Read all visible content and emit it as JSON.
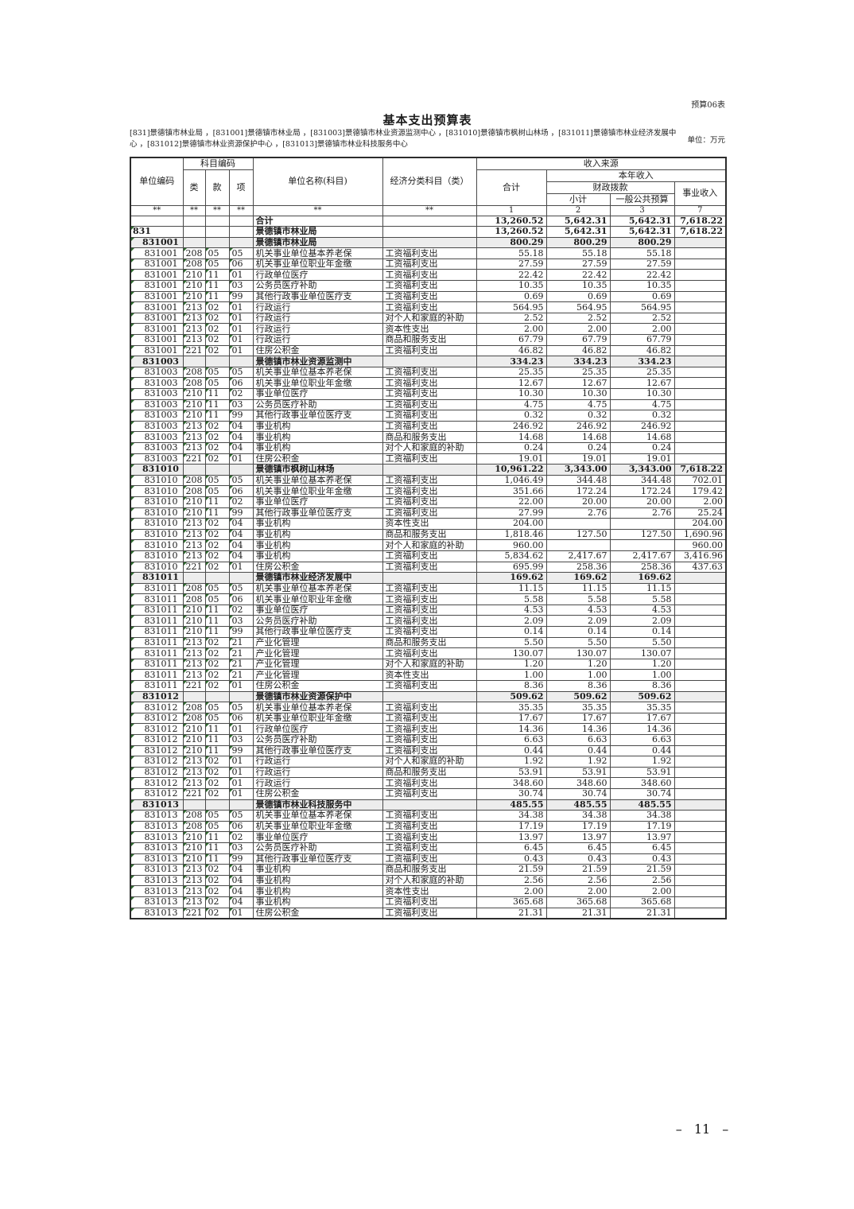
{
  "page": {
    "form_label": "预算06表",
    "unit_label": "单位：万元",
    "page_number": "– 11 –"
  },
  "header": {
    "title": "基本支出预算表",
    "org_list": "[831]景德镇市林业局 ，[831001]景德镇市林业局 ，[831003]景德镇市林业资源监测中心 ，[831010]景德镇市枫树山林场 ，[831011]景德镇市林业经济发展中心 ，[831012]景德镇市林业资源保护中心 ，[831013]景德镇市林业科技服务中心"
  },
  "table": {
    "header": {
      "unit_code": "单位编码",
      "subject_code": "科目编码",
      "cls": "类",
      "sec": "款",
      "item": "项",
      "unit_name": "单位名称(科目)",
      "econ_class": "经济分类科目（类）",
      "income_source": "收入来源",
      "total": "合计",
      "year_income": "本年收入",
      "fiscal": "财政拨款",
      "subtotal": "小计",
      "public_budget": "一般公共预算",
      "business_income": "事业收入"
    },
    "code_row": [
      "**",
      "**",
      "**",
      "**",
      "**",
      "**",
      "1",
      "2",
      "3",
      "7"
    ],
    "rows": [
      [
        "g",
        "",
        "",
        "",
        "",
        "合计",
        "",
        "13,260.52",
        "5,642.31",
        "5,642.31",
        "7,618.22"
      ],
      [
        "d",
        "831",
        "",
        "",
        "",
        "景德镇市林业局",
        "",
        "13,260.52",
        "5,642.31",
        "5,642.31",
        "7,618.22"
      ],
      [
        "s",
        "831001",
        "",
        "",
        "",
        "景德镇市林业局",
        "",
        "800.29",
        "800.29",
        "800.29",
        ""
      ],
      [
        "r",
        "831001",
        "208",
        "05",
        "05",
        "机关事业单位基本养老保",
        "工资福利支出",
        "55.18",
        "55.18",
        "55.18",
        ""
      ],
      [
        "r",
        "831001",
        "208",
        "05",
        "06",
        "机关事业单位职业年金缴",
        "工资福利支出",
        "27.59",
        "27.59",
        "27.59",
        ""
      ],
      [
        "r",
        "831001",
        "210",
        "11",
        "01",
        "行政单位医疗",
        "工资福利支出",
        "22.42",
        "22.42",
        "22.42",
        ""
      ],
      [
        "r",
        "831001",
        "210",
        "11",
        "03",
        "公务员医疗补助",
        "工资福利支出",
        "10.35",
        "10.35",
        "10.35",
        ""
      ],
      [
        "r",
        "831001",
        "210",
        "11",
        "99",
        "其他行政事业单位医疗支",
        "工资福利支出",
        "0.69",
        "0.69",
        "0.69",
        ""
      ],
      [
        "r",
        "831001",
        "213",
        "02",
        "01",
        "行政运行",
        "工资福利支出",
        "564.95",
        "564.95",
        "564.95",
        ""
      ],
      [
        "r",
        "831001",
        "213",
        "02",
        "01",
        "行政运行",
        "对个人和家庭的补助",
        "2.52",
        "2.52",
        "2.52",
        ""
      ],
      [
        "r",
        "831001",
        "213",
        "02",
        "01",
        "行政运行",
        "资本性支出",
        "2.00",
        "2.00",
        "2.00",
        ""
      ],
      [
        "r",
        "831001",
        "213",
        "02",
        "01",
        "行政运行",
        "商品和服务支出",
        "67.79",
        "67.79",
        "67.79",
        ""
      ],
      [
        "r",
        "831001",
        "221",
        "02",
        "01",
        "住房公积金",
        "工资福利支出",
        "46.82",
        "46.82",
        "46.82",
        ""
      ],
      [
        "s",
        "831003",
        "",
        "",
        "",
        "景德镇市林业资源监测中",
        "",
        "334.23",
        "334.23",
        "334.23",
        ""
      ],
      [
        "r",
        "831003",
        "208",
        "05",
        "05",
        "机关事业单位基本养老保",
        "工资福利支出",
        "25.35",
        "25.35",
        "25.35",
        ""
      ],
      [
        "r",
        "831003",
        "208",
        "05",
        "06",
        "机关事业单位职业年金缴",
        "工资福利支出",
        "12.67",
        "12.67",
        "12.67",
        ""
      ],
      [
        "r",
        "831003",
        "210",
        "11",
        "02",
        "事业单位医疗",
        "工资福利支出",
        "10.30",
        "10.30",
        "10.30",
        ""
      ],
      [
        "r",
        "831003",
        "210",
        "11",
        "03",
        "公务员医疗补助",
        "工资福利支出",
        "4.75",
        "4.75",
        "4.75",
        ""
      ],
      [
        "r",
        "831003",
        "210",
        "11",
        "99",
        "其他行政事业单位医疗支",
        "工资福利支出",
        "0.32",
        "0.32",
        "0.32",
        ""
      ],
      [
        "r",
        "831003",
        "213",
        "02",
        "04",
        "事业机构",
        "工资福利支出",
        "246.92",
        "246.92",
        "246.92",
        ""
      ],
      [
        "r",
        "831003",
        "213",
        "02",
        "04",
        "事业机构",
        "商品和服务支出",
        "14.68",
        "14.68",
        "14.68",
        ""
      ],
      [
        "r",
        "831003",
        "213",
        "02",
        "04",
        "事业机构",
        "对个人和家庭的补助",
        "0.24",
        "0.24",
        "0.24",
        ""
      ],
      [
        "r",
        "831003",
        "221",
        "02",
        "01",
        "住房公积金",
        "工资福利支出",
        "19.01",
        "19.01",
        "19.01",
        ""
      ],
      [
        "s",
        "831010",
        "",
        "",
        "",
        "景德镇市枫树山林场",
        "",
        "10,961.22",
        "3,343.00",
        "3,343.00",
        "7,618.22"
      ],
      [
        "r",
        "831010",
        "208",
        "05",
        "05",
        "机关事业单位基本养老保",
        "工资福利支出",
        "1,046.49",
        "344.48",
        "344.48",
        "702.01"
      ],
      [
        "r",
        "831010",
        "208",
        "05",
        "06",
        "机关事业单位职业年金缴",
        "工资福利支出",
        "351.66",
        "172.24",
        "172.24",
        "179.42"
      ],
      [
        "r",
        "831010",
        "210",
        "11",
        "02",
        "事业单位医疗",
        "工资福利支出",
        "22.00",
        "20.00",
        "20.00",
        "2.00"
      ],
      [
        "r",
        "831010",
        "210",
        "11",
        "99",
        "其他行政事业单位医疗支",
        "工资福利支出",
        "27.99",
        "2.76",
        "2.76",
        "25.24"
      ],
      [
        "r",
        "831010",
        "213",
        "02",
        "04",
        "事业机构",
        "资本性支出",
        "204.00",
        "",
        "",
        "204.00"
      ],
      [
        "r",
        "831010",
        "213",
        "02",
        "04",
        "事业机构",
        "商品和服务支出",
        "1,818.46",
        "127.50",
        "127.50",
        "1,690.96"
      ],
      [
        "r",
        "831010",
        "213",
        "02",
        "04",
        "事业机构",
        "对个人和家庭的补助",
        "960.00",
        "",
        "",
        "960.00"
      ],
      [
        "r",
        "831010",
        "213",
        "02",
        "04",
        "事业机构",
        "工资福利支出",
        "5,834.62",
        "2,417.67",
        "2,417.67",
        "3,416.96"
      ],
      [
        "r",
        "831010",
        "221",
        "02",
        "01",
        "住房公积金",
        "工资福利支出",
        "695.99",
        "258.36",
        "258.36",
        "437.63"
      ],
      [
        "s",
        "831011",
        "",
        "",
        "",
        "景德镇市林业经济发展中",
        "",
        "169.62",
        "169.62",
        "169.62",
        ""
      ],
      [
        "r",
        "831011",
        "208",
        "05",
        "05",
        "机关事业单位基本养老保",
        "工资福利支出",
        "11.15",
        "11.15",
        "11.15",
        ""
      ],
      [
        "r",
        "831011",
        "208",
        "05",
        "06",
        "机关事业单位职业年金缴",
        "工资福利支出",
        "5.58",
        "5.58",
        "5.58",
        ""
      ],
      [
        "r",
        "831011",
        "210",
        "11",
        "02",
        "事业单位医疗",
        "工资福利支出",
        "4.53",
        "4.53",
        "4.53",
        ""
      ],
      [
        "r",
        "831011",
        "210",
        "11",
        "03",
        "公务员医疗补助",
        "工资福利支出",
        "2.09",
        "2.09",
        "2.09",
        ""
      ],
      [
        "r",
        "831011",
        "210",
        "11",
        "99",
        "其他行政事业单位医疗支",
        "工资福利支出",
        "0.14",
        "0.14",
        "0.14",
        ""
      ],
      [
        "r",
        "831011",
        "213",
        "02",
        "21",
        "产业化管理",
        "商品和服务支出",
        "5.50",
        "5.50",
        "5.50",
        ""
      ],
      [
        "r",
        "831011",
        "213",
        "02",
        "21",
        "产业化管理",
        "工资福利支出",
        "130.07",
        "130.07",
        "130.07",
        ""
      ],
      [
        "r",
        "831011",
        "213",
        "02",
        "21",
        "产业化管理",
        "对个人和家庭的补助",
        "1.20",
        "1.20",
        "1.20",
        ""
      ],
      [
        "r",
        "831011",
        "213",
        "02",
        "21",
        "产业化管理",
        "资本性支出",
        "1.00",
        "1.00",
        "1.00",
        ""
      ],
      [
        "r",
        "831011",
        "221",
        "02",
        "01",
        "住房公积金",
        "工资福利支出",
        "8.36",
        "8.36",
        "8.36",
        ""
      ],
      [
        "s",
        "831012",
        "",
        "",
        "",
        "景德镇市林业资源保护中",
        "",
        "509.62",
        "509.62",
        "509.62",
        ""
      ],
      [
        "r",
        "831012",
        "208",
        "05",
        "05",
        "机关事业单位基本养老保",
        "工资福利支出",
        "35.35",
        "35.35",
        "35.35",
        ""
      ],
      [
        "r",
        "831012",
        "208",
        "05",
        "06",
        "机关事业单位职业年金缴",
        "工资福利支出",
        "17.67",
        "17.67",
        "17.67",
        ""
      ],
      [
        "r",
        "831012",
        "210",
        "11",
        "01",
        "行政单位医疗",
        "工资福利支出",
        "14.36",
        "14.36",
        "14.36",
        ""
      ],
      [
        "r",
        "831012",
        "210",
        "11",
        "03",
        "公务员医疗补助",
        "工资福利支出",
        "6.63",
        "6.63",
        "6.63",
        ""
      ],
      [
        "r",
        "831012",
        "210",
        "11",
        "99",
        "其他行政事业单位医疗支",
        "工资福利支出",
        "0.44",
        "0.44",
        "0.44",
        ""
      ],
      [
        "r",
        "831012",
        "213",
        "02",
        "01",
        "行政运行",
        "对个人和家庭的补助",
        "1.92",
        "1.92",
        "1.92",
        ""
      ],
      [
        "r",
        "831012",
        "213",
        "02",
        "01",
        "行政运行",
        "商品和服务支出",
        "53.91",
        "53.91",
        "53.91",
        ""
      ],
      [
        "r",
        "831012",
        "213",
        "02",
        "01",
        "行政运行",
        "工资福利支出",
        "348.60",
        "348.60",
        "348.60",
        ""
      ],
      [
        "r",
        "831012",
        "221",
        "02",
        "01",
        "住房公积金",
        "工资福利支出",
        "30.74",
        "30.74",
        "30.74",
        ""
      ],
      [
        "s",
        "831013",
        "",
        "",
        "",
        "景德镇市林业科技服务中",
        "",
        "485.55",
        "485.55",
        "485.55",
        ""
      ],
      [
        "r",
        "831013",
        "208",
        "05",
        "05",
        "机关事业单位基本养老保",
        "工资福利支出",
        "34.38",
        "34.38",
        "34.38",
        ""
      ],
      [
        "r",
        "831013",
        "208",
        "05",
        "06",
        "机关事业单位职业年金缴",
        "工资福利支出",
        "17.19",
        "17.19",
        "17.19",
        ""
      ],
      [
        "r",
        "831013",
        "210",
        "11",
        "02",
        "事业单位医疗",
        "工资福利支出",
        "13.97",
        "13.97",
        "13.97",
        ""
      ],
      [
        "r",
        "831013",
        "210",
        "11",
        "03",
        "公务员医疗补助",
        "工资福利支出",
        "6.45",
        "6.45",
        "6.45",
        ""
      ],
      [
        "r",
        "831013",
        "210",
        "11",
        "99",
        "其他行政事业单位医疗支",
        "工资福利支出",
        "0.43",
        "0.43",
        "0.43",
        ""
      ],
      [
        "r",
        "831013",
        "213",
        "02",
        "04",
        "事业机构",
        "商品和服务支出",
        "21.59",
        "21.59",
        "21.59",
        ""
      ],
      [
        "r",
        "831013",
        "213",
        "02",
        "04",
        "事业机构",
        "对个人和家庭的补助",
        "2.56",
        "2.56",
        "2.56",
        ""
      ],
      [
        "r",
        "831013",
        "213",
        "02",
        "04",
        "事业机构",
        "资本性支出",
        "2.00",
        "2.00",
        "2.00",
        ""
      ],
      [
        "r",
        "831013",
        "213",
        "02",
        "04",
        "事业机构",
        "工资福利支出",
        "365.68",
        "365.68",
        "365.68",
        ""
      ],
      [
        "r",
        "831013",
        "221",
        "02",
        "01",
        "住房公积金",
        "工资福利支出",
        "21.31",
        "21.31",
        "21.31",
        ""
      ]
    ]
  }
}
